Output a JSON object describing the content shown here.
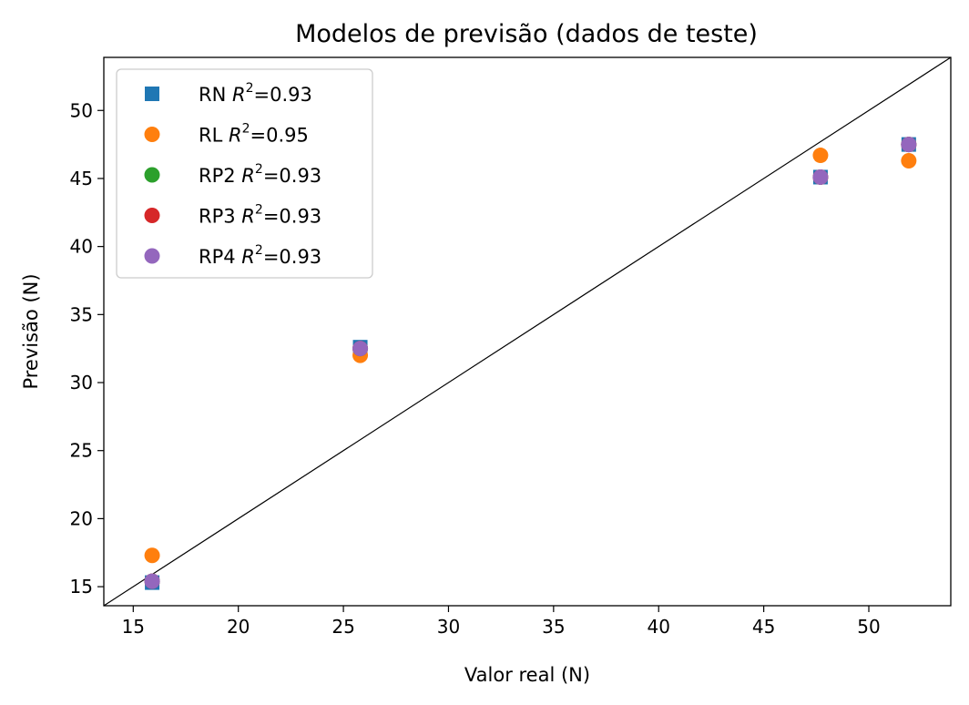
{
  "chart_data": {
    "type": "scatter",
    "title": "Modelos de previsão (dados de teste)",
    "xlabel": "Valor real (N)",
    "ylabel": "Previsão (N)",
    "xlim": [
      13.6,
      53.9
    ],
    "ylim": [
      13.6,
      53.9
    ],
    "xticks": [
      15,
      20,
      25,
      30,
      35,
      40,
      45,
      50
    ],
    "yticks": [
      15,
      20,
      25,
      30,
      35,
      40,
      45,
      50
    ],
    "grid": false,
    "legend_position": "top-left",
    "identity_line": true,
    "series": [
      {
        "name": "RN",
        "r2_label": "R",
        "r2_value": "=0.93",
        "marker": "square",
        "color": "#1f77b4",
        "x": [
          15.9,
          25.8,
          47.7,
          51.9
        ],
        "y": [
          15.3,
          32.6,
          45.1,
          47.5
        ]
      },
      {
        "name": "RL",
        "r2_label": "R",
        "r2_value": "=0.95",
        "marker": "circle",
        "color": "#ff7f0e",
        "x": [
          15.9,
          25.8,
          47.7,
          51.9
        ],
        "y": [
          17.3,
          32.0,
          46.7,
          46.3
        ]
      },
      {
        "name": "RP2",
        "r2_label": "R",
        "r2_value": "=0.93",
        "marker": "circle",
        "color": "#2ca02c",
        "x": [
          15.9,
          25.8,
          47.7,
          51.9
        ],
        "y": [
          15.4,
          32.5,
          45.1,
          47.5
        ]
      },
      {
        "name": "RP3",
        "r2_label": "R",
        "r2_value": "=0.93",
        "marker": "circle",
        "color": "#d62728",
        "x": [
          15.9,
          25.8,
          47.7,
          51.9
        ],
        "y": [
          15.4,
          32.5,
          45.1,
          47.5
        ]
      },
      {
        "name": "RP4",
        "r2_label": "R",
        "r2_value": "=0.93",
        "marker": "circle",
        "color": "#9467bd",
        "x": [
          15.9,
          25.8,
          47.7,
          51.9
        ],
        "y": [
          15.4,
          32.5,
          45.1,
          47.5
        ]
      }
    ]
  }
}
